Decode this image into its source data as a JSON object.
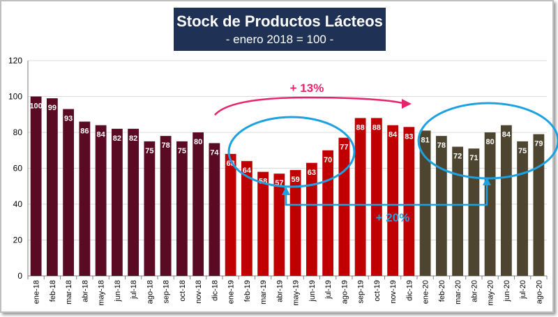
{
  "colors": {
    "y2018": "#5b0a24",
    "y2019": "#c00000",
    "y2020": "#4d4530",
    "title_bg": "#1f3154",
    "pink_arrow": "#e8236e",
    "blue": "#1da1e0",
    "grid": "#d9d9d9"
  },
  "chart_data": {
    "type": "bar",
    "title": "Stock de Productos Lácteos",
    "subtitle": "- enero 2018 = 100 -",
    "categories": [
      "ene-18",
      "feb-18",
      "mar-18",
      "abr-18",
      "may-18",
      "jun-18",
      "jul-18",
      "ago-18",
      "sep-18",
      "oct-18",
      "nov-18",
      "dic-18",
      "ene-19",
      "feb-19",
      "mar-19",
      "abr-19",
      "may-19",
      "jun-19",
      "jul-19",
      "ago-19",
      "sep-19",
      "oct-19",
      "nov-19",
      "dic-19",
      "ene-20",
      "feb-20",
      "mar-20",
      "abr-20",
      "may-20",
      "jun-20",
      "jul-20",
      "ago-20"
    ],
    "values": [
      100,
      99,
      93,
      86,
      84,
      82,
      82,
      75,
      78,
      75,
      80,
      74,
      68,
      64,
      58,
      57,
      59,
      63,
      70,
      77,
      88,
      88,
      84,
      83,
      81,
      78,
      72,
      71,
      80,
      84,
      75,
      79
    ],
    "data_labels": [
      "100",
      "99",
      "93",
      "86",
      "84",
      "82",
      "82",
      "75",
      "78",
      "75",
      "80",
      "74",
      "68",
      "64",
      "58",
      "57",
      "59",
      "63",
      "70",
      "77",
      "88",
      "88",
      "84",
      "83",
      "81",
      "78",
      "72",
      "71",
      "80",
      "84",
      "75",
      "79"
    ],
    "series_year": [
      "2018",
      "2018",
      "2018",
      "2018",
      "2018",
      "2018",
      "2018",
      "2018",
      "2018",
      "2018",
      "2018",
      "2018",
      "2019",
      "2019",
      "2019",
      "2019",
      "2019",
      "2019",
      "2019",
      "2019",
      "2019",
      "2019",
      "2019",
      "2019",
      "2020",
      "2020",
      "2020",
      "2020",
      "2020",
      "2020",
      "2020",
      "2020"
    ],
    "ylim": [
      0,
      120
    ],
    "yticks": [
      0,
      20,
      40,
      60,
      80,
      100,
      120
    ],
    "grid": true,
    "annotations": {
      "arrow_label": "+ 13%",
      "bracket_label": "+ 20%"
    }
  }
}
